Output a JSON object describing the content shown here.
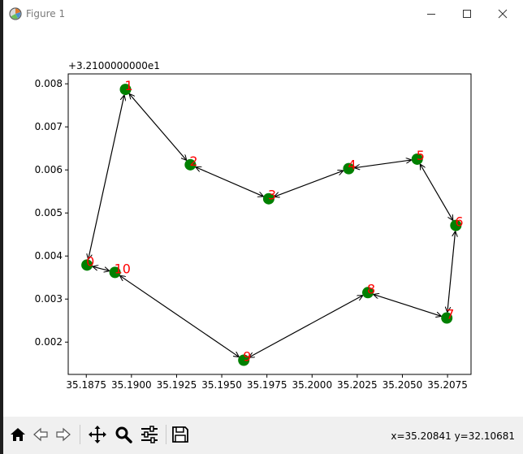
{
  "window": {
    "title": "Figure 1",
    "minimize_icon": "minimize-icon",
    "maximize_icon": "maximize-icon",
    "close_icon": "close-icon"
  },
  "toolbar": {
    "buttons": [
      "home-icon",
      "back-icon",
      "forward-icon",
      "pan-icon",
      "zoom-icon",
      "subplots-icon",
      "save-icon"
    ],
    "coordinates": "x=35.20841 y=32.10681"
  },
  "colors": {
    "marker": "#008000",
    "label": "#ff0000",
    "arrow": "#000000",
    "toolbar_bg": "#f0f0f0"
  },
  "chart_data": {
    "type": "scatter",
    "title": "",
    "xlabel": "",
    "ylabel": "",
    "y_offset_label": "+3.2100000000e1",
    "xlim": [
      35.1865,
      35.2088
    ],
    "ylim": [
      0.00125,
      0.00823
    ],
    "x_ticks": [
      35.1875,
      35.19,
      35.1925,
      35.195,
      35.1975,
      35.2,
      35.2025,
      35.205,
      35.2075
    ],
    "x_tick_labels": [
      "35.1875",
      "35.1900",
      "35.1925",
      "35.1950",
      "35.1975",
      "35.2000",
      "35.2025",
      "35.2050",
      "35.2075"
    ],
    "y_ticks": [
      0.002,
      0.003,
      0.004,
      0.005,
      0.006,
      0.007,
      0.008
    ],
    "y_tick_labels": [
      "0.002",
      "0.003",
      "0.004",
      "0.005",
      "0.006",
      "0.007",
      "0.008"
    ],
    "grid": false,
    "points": [
      {
        "label": "0",
        "x": 35.18754,
        "y": 0.00379
      },
      {
        "label": "1",
        "x": 35.18967,
        "y": 0.00787
      },
      {
        "label": "2",
        "x": 35.19326,
        "y": 0.00612
      },
      {
        "label": "3",
        "x": 35.1976,
        "y": 0.00533
      },
      {
        "label": "4",
        "x": 35.20203,
        "y": 0.00603
      },
      {
        "label": "5",
        "x": 35.20582,
        "y": 0.00625
      },
      {
        "label": "6",
        "x": 35.20796,
        "y": 0.00471
      },
      {
        "label": "7",
        "x": 35.20746,
        "y": 0.00256
      },
      {
        "label": "8",
        "x": 35.20309,
        "y": 0.00315
      },
      {
        "label": "9",
        "x": 35.19622,
        "y": 0.00158
      },
      {
        "label": "10",
        "x": 35.18909,
        "y": 0.00362
      }
    ],
    "route": [
      0,
      1,
      2,
      3,
      4,
      5,
      6,
      7,
      8,
      9,
      10,
      0
    ]
  }
}
